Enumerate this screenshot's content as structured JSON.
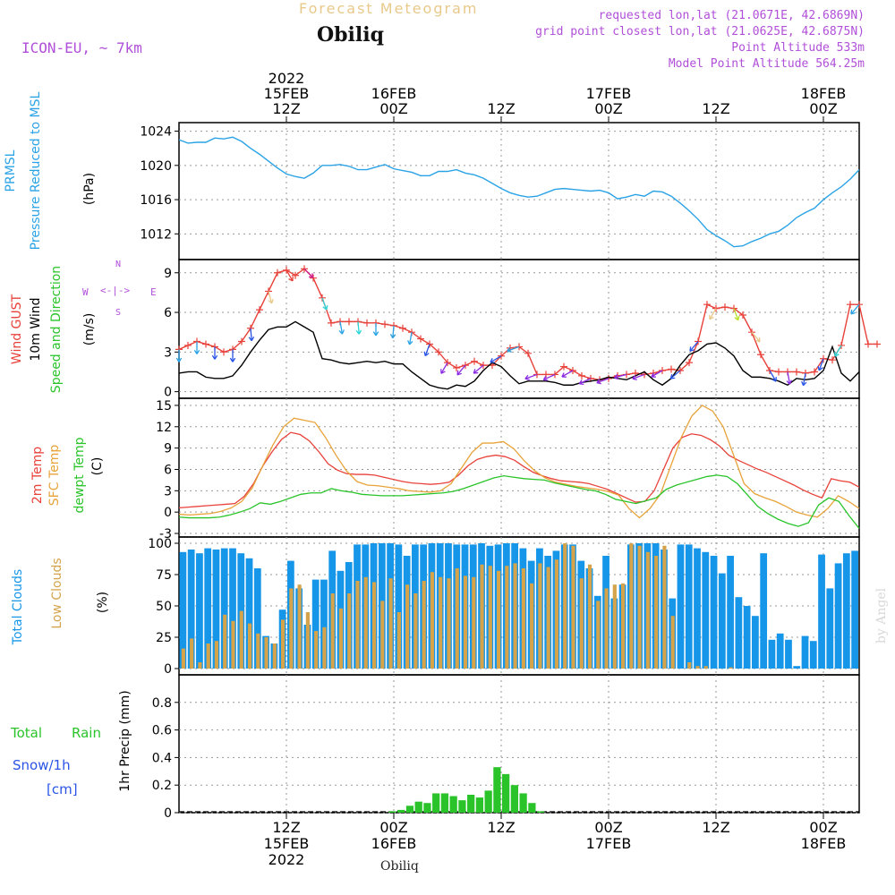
{
  "header": {
    "title": "Forecast Meteogram",
    "location": "Obiliq",
    "model": "ICON-EU, ~ 7km",
    "requested": "requested lon,lat (21.0671E, 42.6869N)",
    "gridpoint": "grid point closest lon,lat (21.0625E, 42.6875N)",
    "altitude": "Point Altitude 533m",
    "model_altitude": "Model Point Altitude 564.25m",
    "credit": "by Angel",
    "footer_location": "Obiliq"
  },
  "time_axis": {
    "top": [
      {
        "l1": "2022",
        "l2": "15FEB",
        "l3": "12Z",
        "x": 12
      },
      {
        "l1": "",
        "l2": "16FEB",
        "l3": "00Z",
        "x": 24
      },
      {
        "l1": "",
        "l2": "",
        "l3": "12Z",
        "x": 36
      },
      {
        "l1": "",
        "l2": "17FEB",
        "l3": "00Z",
        "x": 48
      },
      {
        "l1": "",
        "l2": "",
        "l3": "12Z",
        "x": 60
      },
      {
        "l1": "",
        "l2": "18FEB",
        "l3": "00Z",
        "x": 72
      }
    ],
    "bottom": [
      {
        "l1": "12Z",
        "l2": "15FEB",
        "l3": "2022",
        "x": 12
      },
      {
        "l1": "00Z",
        "l2": "16FEB",
        "l3": "",
        "x": 24
      },
      {
        "l1": "12Z",
        "l2": "",
        "l3": "",
        "x": 36
      },
      {
        "l1": "00Z",
        "l2": "17FEB",
        "l3": "",
        "x": 48
      },
      {
        "l1": "12Z",
        "l2": "",
        "l3": "",
        "x": 60
      },
      {
        "l1": "00Z",
        "l2": "18FEB",
        "l3": "",
        "x": 72
      }
    ]
  },
  "panels": {
    "pressure": {
      "label1": "PRMSL",
      "label2": "Pressure Reduced to MSL",
      "unit": "(hPa)",
      "color1": "#2aa3e6",
      "color2": "#2aa3e6"
    },
    "wind": {
      "label1": "Wind GUST",
      "label2": "10m Wind",
      "label3": "Speed and Direction",
      "unit": "(m/s)",
      "compass_ns": "N",
      "compass_s": "S",
      "compass_w": "W",
      "compass_e": "E"
    },
    "temp": {
      "label1": "2m Temp",
      "label2": "SFC Temp",
      "label3": "dewpt Temp",
      "unit": "(C)"
    },
    "clouds": {
      "label1": "Total Clouds",
      "label2": "Low Clouds",
      "unit": "(%)"
    },
    "precip": {
      "label1": "Total",
      "label2": "Rain",
      "label3": "Snow/1h",
      "label4": "[cm]",
      "unit": "1hr Precip (mm)"
    }
  },
  "chart_data": [
    {
      "type": "line",
      "name": "pressure",
      "ylim": [
        1009,
        1025
      ],
      "yticks": [
        1012,
        1016,
        1020,
        1024
      ],
      "color": "#2aa3e6",
      "x": [
        0,
        1,
        2,
        3,
        4,
        5,
        6,
        7,
        8,
        9,
        10,
        11,
        12,
        13,
        14,
        15,
        16,
        17,
        18,
        19,
        20,
        21,
        22,
        23,
        24,
        25,
        26,
        27,
        28,
        29,
        30,
        31,
        32,
        33,
        34,
        35,
        36,
        37,
        38,
        39,
        40,
        41,
        42,
        43,
        44,
        45,
        46,
        47,
        48,
        49,
        50,
        51,
        52,
        53,
        54,
        55,
        56,
        57,
        58,
        59,
        60,
        61,
        62,
        63,
        64,
        65,
        66,
        67,
        68,
        69,
        70,
        71,
        72,
        73,
        74,
        75,
        76
      ],
      "values": [
        1023.0,
        1022.6,
        1022.7,
        1022.7,
        1023.2,
        1023.1,
        1023.3,
        1022.8,
        1022.0,
        1021.3,
        1020.5,
        1019.7,
        1019.0,
        1018.7,
        1018.5,
        1019.1,
        1020.0,
        1020.0,
        1020.1,
        1019.9,
        1019.5,
        1019.5,
        1019.8,
        1020.1,
        1019.6,
        1019.4,
        1019.2,
        1018.8,
        1018.8,
        1019.3,
        1019.3,
        1019.5,
        1019.1,
        1018.9,
        1018.5,
        1017.9,
        1017.3,
        1016.8,
        1016.5,
        1016.3,
        1016.4,
        1016.8,
        1017.2,
        1017.3,
        1017.2,
        1017.1,
        1017.0,
        1017.1,
        1016.8,
        1016.1,
        1016.3,
        1016.6,
        1016.4,
        1017.0,
        1016.9,
        1016.4,
        1015.6,
        1014.7,
        1013.7,
        1012.5,
        1011.8,
        1011.2,
        1010.5,
        1010.6,
        1011.1,
        1011.5,
        1012.0,
        1012.3,
        1013.0,
        1013.9,
        1014.5,
        1015.0,
        1016.0,
        1016.8,
        1017.5,
        1018.4,
        1019.5
      ]
    },
    {
      "type": "line",
      "name": "wind",
      "ylim": [
        -0.5,
        10
      ],
      "yticks": [
        0,
        3,
        6,
        9
      ],
      "series": [
        {
          "name": "Wind GUST",
          "color": "#e8413a",
          "marker": "plus",
          "values": [
            3.2,
            3.5,
            3.8,
            3.6,
            3.4,
            3.0,
            3.2,
            3.8,
            4.8,
            6.2,
            7.6,
            9.0,
            9.2,
            8.8,
            9.3,
            8.6,
            7.1,
            5.2,
            5.3,
            5.3,
            5.3,
            5.2,
            5.2,
            5.1,
            5.0,
            4.8,
            4.5,
            4.0,
            3.6,
            3.0,
            2.2,
            1.8,
            2.0,
            2.3,
            2.0,
            2.0,
            2.7,
            3.3,
            3.4,
            2.9,
            1.3,
            1.3,
            1.3,
            1.9,
            1.6,
            1.2,
            1.0,
            0.9,
            1.0,
            1.2,
            1.3,
            1.4,
            1.3,
            1.4,
            1.6,
            1.7,
            1.6,
            2.2,
            3.8,
            6.6,
            6.3,
            6.4,
            6.3,
            5.8,
            4.5,
            2.8,
            1.6,
            1.5,
            1.5,
            1.5,
            1.4,
            1.5,
            2.5,
            2.4,
            3.5,
            6.6,
            6.6,
            3.6,
            3.6
          ]
        },
        {
          "name": "10m Wind",
          "color": "#000000",
          "marker": "none",
          "values": [
            1.4,
            1.5,
            1.5,
            1.1,
            1.0,
            1.0,
            1.2,
            2.0,
            3.0,
            3.9,
            4.7,
            4.9,
            4.9,
            5.3,
            4.9,
            4.5,
            2.5,
            2.4,
            2.2,
            2.1,
            2.2,
            2.3,
            2.2,
            2.3,
            2.1,
            2.1,
            1.5,
            1.0,
            0.5,
            0.3,
            0.2,
            0.5,
            0.4,
            0.8,
            1.6,
            2.2,
            1.9,
            1.2,
            0.6,
            0.8,
            0.8,
            0.8,
            0.7,
            0.5,
            0.5,
            0.7,
            0.8,
            0.9,
            1.1,
            1.0,
            0.9,
            1.2,
            1.5,
            0.9,
            0.5,
            1.0,
            2.0,
            2.8,
            3.1,
            3.6,
            3.7,
            3.3,
            2.7,
            1.6,
            1.1,
            1.1,
            1.0,
            0.8,
            0.5,
            1.0,
            0.9,
            1.0,
            1.6,
            3.4,
            1.4,
            0.8,
            1.5
          ]
        }
      ],
      "barbs_x": [
        0,
        2,
        4,
        6,
        8,
        10,
        12,
        14,
        16,
        18,
        20,
        22,
        24,
        26,
        28,
        30,
        32,
        34,
        36,
        38,
        40,
        42,
        44,
        46,
        48,
        50,
        52,
        54,
        56,
        58,
        60,
        62,
        64,
        66,
        68,
        70,
        72,
        74,
        76
      ],
      "barbs_dir_deg": [
        180,
        180,
        180,
        180,
        175,
        165,
        150,
        135,
        160,
        170,
        175,
        180,
        185,
        190,
        200,
        210,
        220,
        230,
        240,
        250,
        250,
        245,
        240,
        245,
        250,
        255,
        250,
        240,
        230,
        220,
        210,
        160,
        140,
        150,
        170,
        190,
        200,
        210,
        220
      ],
      "barbs_colors": [
        "#2aa3e6",
        "#2aa3e6",
        "#2a54e6",
        "#2a54e6",
        "#2a54e6",
        "#e8c98a",
        "#e8413a",
        "#d02090",
        "#2ad5d5",
        "#2aa3e6",
        "#2ad5d5",
        "#2aa3e6",
        "#2aa3e6",
        "#2aa3e6",
        "#2a54e6",
        "#8a2be2",
        "#8a2be2",
        "#8a2be2",
        "#2a54e6",
        "#2aa3e6",
        "#8a2be2",
        "#8a2be2",
        "#8a2be2",
        "#8a2be2",
        "#8a2be2",
        "#8a2be2",
        "#8a2be2",
        "#8a2be2",
        "#2a54e6",
        "#2a54e6",
        "#e8c98a",
        "#b8e02a",
        "#e8c98a",
        "#2a54e6",
        "#8a2be2",
        "#2a54e6",
        "#2a54e6",
        "#2ad5d5",
        "#2aa3e6"
      ]
    },
    {
      "type": "line",
      "name": "temperature",
      "ylim": [
        -3.5,
        16
      ],
      "yticks": [
        -3,
        0,
        3,
        6,
        9,
        12,
        15
      ],
      "series": [
        {
          "name": "2m Temp",
          "color": "#e8413a",
          "values": [
            0.6,
            0.7,
            0.8,
            0.9,
            1.0,
            1.1,
            1.2,
            2.2,
            4.0,
            6.5,
            8.5,
            10.2,
            11.2,
            10.9,
            10.0,
            8.5,
            6.8,
            5.9,
            5.4,
            5.3,
            5.3,
            5.2,
            4.9,
            4.6,
            4.3,
            4.1,
            4.0,
            3.9,
            4.0,
            4.2,
            5.2,
            6.5,
            7.4,
            7.8,
            8.0,
            7.8,
            7.3,
            6.4,
            5.6,
            5.1,
            4.7,
            4.4,
            4.3,
            4.2,
            4.0,
            3.6,
            3.2,
            2.6,
            2.0,
            1.4,
            1.5,
            3.0,
            6.0,
            9.0,
            10.5,
            11.0,
            10.8,
            10.2,
            9.3,
            8.0,
            7.3,
            6.7,
            6.1,
            5.6,
            5.0,
            4.4,
            3.8,
            3.1,
            2.5,
            2.0,
            4.7,
            4.4,
            4.2,
            3.5
          ]
        },
        {
          "name": "SFC Temp",
          "color": "#e8a33a",
          "values": [
            -0.3,
            -0.4,
            -0.3,
            -0.2,
            0.1,
            0.6,
            1.5,
            3.4,
            6.5,
            9.5,
            12.0,
            13.2,
            12.9,
            12.6,
            10.5,
            8.0,
            5.8,
            4.3,
            3.8,
            3.7,
            3.5,
            3.3,
            3.0,
            2.9,
            2.8,
            3.0,
            4.0,
            6.2,
            8.4,
            9.7,
            9.7,
            9.9,
            8.9,
            7.2,
            5.8,
            4.8,
            4.2,
            3.9,
            3.6,
            3.4,
            3.2,
            2.9,
            2.4,
            0.5,
            -0.8,
            0.5,
            2.5,
            6.5,
            10.5,
            13.5,
            15.0,
            14.2,
            12.0,
            8.0,
            4.0,
            2.6,
            2.0,
            1.5,
            0.8,
            0.0,
            -0.4,
            -0.7,
            0.5,
            2.3,
            1.5,
            0.5
          ]
        },
        {
          "name": "dewpt Temp",
          "color": "#2ac42a",
          "values": [
            -0.7,
            -0.8,
            -0.8,
            -0.8,
            -0.7,
            -0.4,
            0.0,
            0.5,
            1.3,
            1.1,
            1.5,
            2.0,
            2.5,
            2.7,
            2.7,
            3.3,
            3.0,
            2.8,
            2.5,
            2.4,
            2.3,
            2.3,
            2.3,
            2.4,
            2.5,
            2.6,
            2.7,
            2.9,
            3.3,
            3.8,
            4.3,
            4.8,
            5.1,
            4.9,
            4.7,
            4.6,
            4.5,
            4.1,
            3.8,
            3.5,
            3.2,
            3.0,
            2.5,
            1.8,
            1.5,
            1.2,
            1.6,
            2.0,
            3.2,
            3.8,
            4.2,
            4.6,
            5.0,
            5.2,
            5.0,
            4.0,
            2.4,
            0.8,
            -0.2,
            -1.0,
            -1.6,
            -2.0,
            -1.5,
            1.0,
            2.0,
            1.5,
            -0.5,
            -2.3
          ]
        }
      ]
    },
    {
      "type": "bar",
      "name": "clouds",
      "ylim": [
        -5,
        105
      ],
      "yticks": [
        0,
        25,
        50,
        75,
        100
      ],
      "series": [
        {
          "name": "Total Clouds",
          "color": "#1696e8",
          "values": [
            93,
            95,
            92,
            96,
            95,
            96,
            96,
            92,
            88,
            80,
            26,
            20,
            47,
            86,
            64,
            35,
            71,
            71,
            94,
            78,
            85,
            99,
            99,
            100,
            100,
            100,
            99,
            90,
            99,
            99,
            100,
            100,
            100,
            99,
            99,
            99,
            100,
            98,
            99,
            100,
            100,
            96,
            86,
            96,
            90,
            94,
            99,
            99,
            86,
            80,
            58,
            90,
            56,
            67,
            99,
            100,
            100,
            100,
            95,
            56,
            99,
            99,
            96,
            93,
            90,
            76,
            90,
            57,
            50,
            42,
            92,
            23,
            28,
            23,
            2,
            26,
            22,
            91,
            64,
            84,
            92,
            94
          ]
        },
        {
          "name": "Low Clouds",
          "color": "#d4a34a",
          "values": [
            16,
            24,
            5,
            20,
            22,
            43,
            38,
            46,
            36,
            28,
            25,
            20,
            39,
            64,
            67,
            45,
            30,
            33,
            60,
            48,
            60,
            70,
            73,
            69,
            54,
            72,
            45,
            67,
            60,
            70,
            77,
            73,
            72,
            80,
            74,
            73,
            83,
            82,
            78,
            82,
            84,
            80,
            68,
            84,
            81,
            87,
            100,
            98,
            72,
            83,
            54,
            64,
            67,
            68,
            100,
            98,
            93,
            90,
            98,
            42,
            0,
            5,
            2,
            2,
            0,
            0,
            1,
            0,
            0,
            0,
            0,
            0,
            0,
            0,
            0,
            0,
            0,
            0,
            0,
            0,
            0,
            0
          ]
        }
      ]
    },
    {
      "type": "bar",
      "name": "precip",
      "ylim": [
        0,
        1.0
      ],
      "yticks": [
        0,
        0.2,
        0.4,
        0.6,
        0.8
      ],
      "series": [
        {
          "name": "Rain",
          "color": "#2ac42a",
          "values": [
            0,
            0,
            0,
            0,
            0,
            0,
            0,
            0,
            0,
            0,
            0,
            0,
            0,
            0,
            0,
            0,
            0,
            0,
            0,
            0,
            0,
            0,
            0,
            0,
            0.01,
            0.02,
            0.05,
            0.08,
            0.07,
            0.14,
            0.14,
            0.12,
            0.09,
            0.13,
            0.11,
            0.16,
            0.33,
            0.28,
            0.2,
            0.14,
            0.07,
            0.01,
            0,
            0,
            0,
            0,
            0,
            0,
            0,
            0,
            0,
            0,
            0,
            0,
            0,
            0,
            0,
            0,
            0,
            0,
            0,
            0,
            0,
            0,
            0,
            0,
            0,
            0,
            0,
            0,
            0,
            0,
            0,
            0,
            0,
            0,
            0,
            0
          ]
        }
      ]
    }
  ]
}
